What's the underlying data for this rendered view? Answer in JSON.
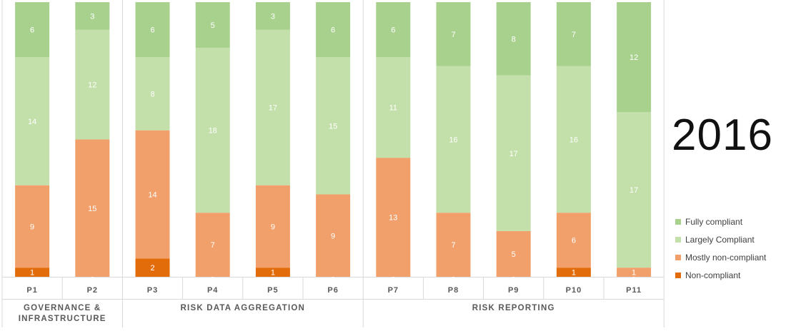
{
  "year": "2016",
  "chart_data": {
    "type": "bar",
    "stacked": true,
    "categories": [
      "P1",
      "P2",
      "P3",
      "P4",
      "P5",
      "P6",
      "P7",
      "P8",
      "P9",
      "P10",
      "P11"
    ],
    "groups": [
      {
        "label": "GOVERNANCE & INFRASTRUCTURE",
        "categories": [
          "P1",
          "P2"
        ]
      },
      {
        "label": "RISK DATA AGGREGATION",
        "categories": [
          "P3",
          "P4",
          "P5",
          "P6"
        ]
      },
      {
        "label": "RISK REPORTING",
        "categories": [
          "P7",
          "P8",
          "P9",
          "P10",
          "P11"
        ]
      }
    ],
    "series": [
      {
        "name": "Non-compliant",
        "color": "#e36c0a",
        "values": [
          1,
          0,
          2,
          0,
          1,
          0,
          0,
          0,
          0,
          1,
          0
        ]
      },
      {
        "name": "Mostly non-compliant",
        "color": "#f2a06b",
        "values": [
          9,
          15,
          14,
          7,
          9,
          9,
          13,
          7,
          5,
          6,
          1
        ]
      },
      {
        "name": "Largely Compliant",
        "color": "#c3dfaa",
        "values": [
          14,
          12,
          8,
          18,
          17,
          15,
          11,
          16,
          17,
          16,
          17
        ]
      },
      {
        "name": "Fully compliant",
        "color": "#a9d18e",
        "values": [
          6,
          3,
          6,
          5,
          3,
          6,
          6,
          7,
          8,
          7,
          12
        ]
      }
    ],
    "legend_order": [
      "Fully compliant",
      "Largely Compliant",
      "Mostly non-compliant",
      "Non-compliant"
    ],
    "legend_position": "right",
    "ylim": [
      0,
      30
    ],
    "grid": false,
    "data_labels": true
  }
}
